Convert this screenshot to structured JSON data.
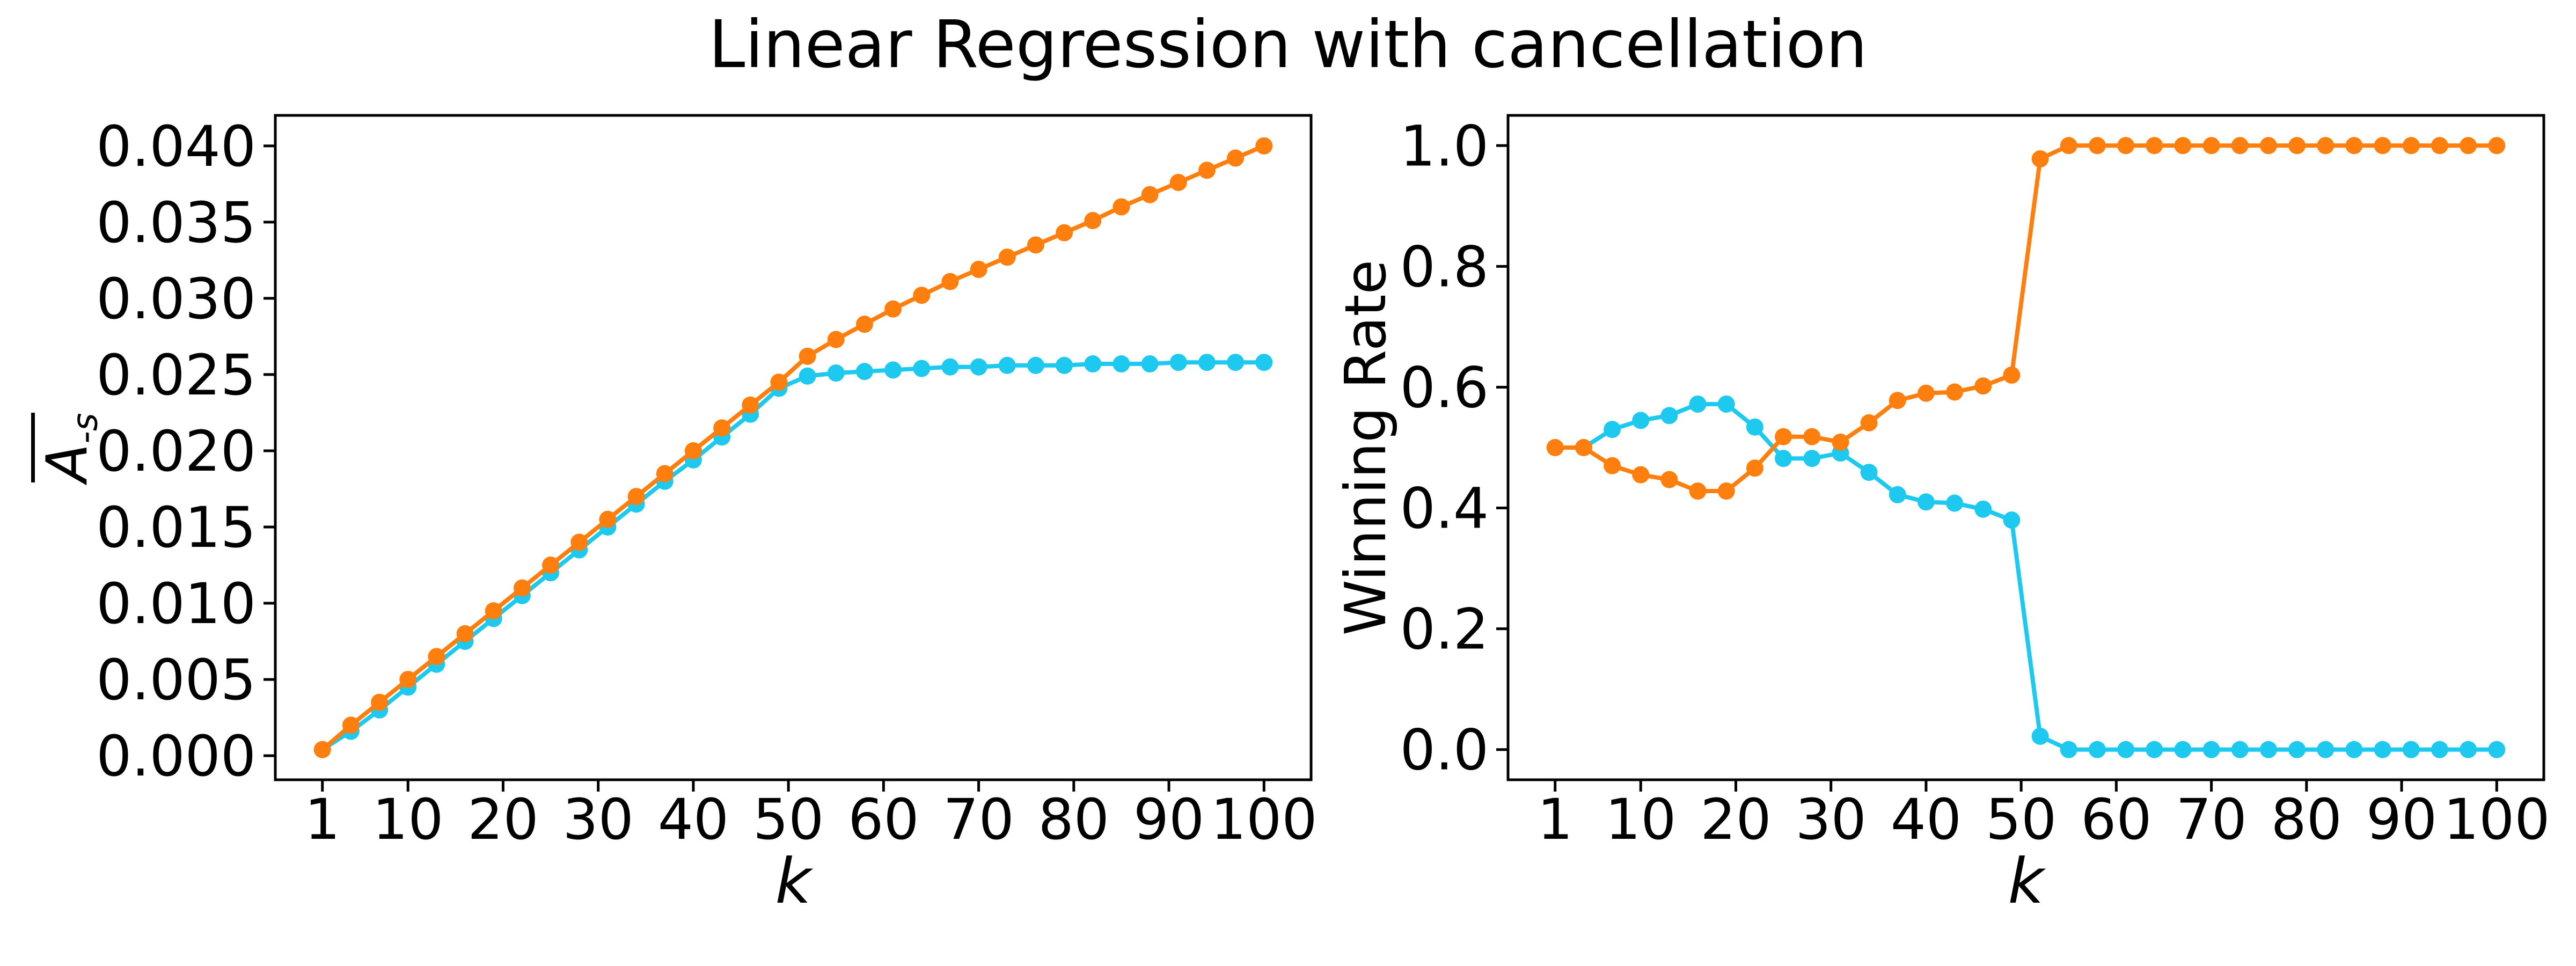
{
  "title": "Linear Regression with cancellation",
  "colors": {
    "orange": "#ff7f0e",
    "cyan": "#1ec9f0",
    "axis": "#000000",
    "background": "#ffffff"
  },
  "chart_data": [
    {
      "id": "left-panel",
      "type": "line",
      "marker": "circle",
      "xlabel": "k",
      "ylabel_base": "A",
      "ylabel_sub": "-s",
      "ylabel_text": "A-bar_{-s}",
      "grid": false,
      "legend": null,
      "xlim": [
        -3.95,
        104.95
      ],
      "ylim": [
        -0.00158,
        0.042
      ],
      "x": [
        1,
        4,
        7,
        10,
        13,
        16,
        19,
        22,
        25,
        28,
        31,
        34,
        37,
        40,
        43,
        46,
        49,
        52,
        55,
        58,
        61,
        64,
        67,
        70,
        73,
        76,
        79,
        82,
        85,
        88,
        91,
        94,
        97,
        100
      ],
      "x_ticks": [
        1,
        10,
        20,
        30,
        40,
        50,
        60,
        70,
        80,
        90,
        100
      ],
      "x_tick_labels": [
        "1",
        "10",
        "20",
        "30",
        "40",
        "50",
        "60",
        "70",
        "80",
        "90",
        "100"
      ],
      "y_ticks": [
        0.0,
        0.005,
        0.01,
        0.015,
        0.02,
        0.025,
        0.03,
        0.035,
        0.04
      ],
      "y_tick_labels": [
        "0.000",
        "0.005",
        "0.010",
        "0.015",
        "0.020",
        "0.025",
        "0.030",
        "0.035",
        "0.040"
      ],
      "series": [
        {
          "name": "cyan",
          "color_key": "cyan",
          "values": [
            0.0004,
            0.0016,
            0.003,
            0.0045,
            0.006,
            0.0075,
            0.009,
            0.0105,
            0.012,
            0.0135,
            0.015,
            0.0165,
            0.018,
            0.0194,
            0.0209,
            0.0224,
            0.0241,
            0.0249,
            0.0251,
            0.0252,
            0.0253,
            0.0254,
            0.0255,
            0.0255,
            0.0256,
            0.0256,
            0.0256,
            0.0257,
            0.0257,
            0.0257,
            0.0258,
            0.0258,
            0.0258,
            0.0258
          ]
        },
        {
          "name": "orange",
          "color_key": "orange",
          "values": [
            0.0004,
            0.002,
            0.0035,
            0.005,
            0.0065,
            0.008,
            0.0095,
            0.011,
            0.0125,
            0.014,
            0.0155,
            0.017,
            0.0185,
            0.02,
            0.0215,
            0.023,
            0.0245,
            0.0262,
            0.0273,
            0.0283,
            0.0293,
            0.0302,
            0.0311,
            0.0319,
            0.0327,
            0.0335,
            0.0343,
            0.0351,
            0.036,
            0.0368,
            0.0376,
            0.0384,
            0.0392,
            0.04
          ]
        }
      ]
    },
    {
      "id": "right-panel",
      "type": "line",
      "marker": "circle",
      "xlabel": "k",
      "ylabel": "Winning Rate",
      "grid": false,
      "legend": null,
      "xlim": [
        -3.95,
        104.95
      ],
      "ylim": [
        -0.05,
        1.05
      ],
      "x": [
        1,
        4,
        7,
        10,
        13,
        16,
        19,
        22,
        25,
        28,
        31,
        34,
        37,
        40,
        43,
        46,
        49,
        52,
        55,
        58,
        61,
        64,
        67,
        70,
        73,
        76,
        79,
        82,
        85,
        88,
        91,
        94,
        97,
        100
      ],
      "x_ticks": [
        1,
        10,
        20,
        30,
        40,
        50,
        60,
        70,
        80,
        90,
        100
      ],
      "x_tick_labels": [
        "1",
        "10",
        "20",
        "30",
        "40",
        "50",
        "60",
        "70",
        "80",
        "90",
        "100"
      ],
      "y_ticks": [
        0.0,
        0.2,
        0.4,
        0.6,
        0.8,
        1.0
      ],
      "y_tick_labels": [
        "0.0",
        "0.2",
        "0.4",
        "0.6",
        "0.8",
        "1.0"
      ],
      "series": [
        {
          "name": "cyan",
          "color_key": "cyan",
          "values": [
            0.5,
            0.5,
            0.53,
            0.545,
            0.553,
            0.572,
            0.572,
            0.534,
            0.482,
            0.482,
            0.491,
            0.459,
            0.422,
            0.41,
            0.408,
            0.398,
            0.38,
            0.022,
            0.0,
            0.0,
            0.0,
            0.0,
            0.0,
            0.0,
            0.0,
            0.0,
            0.0,
            0.0,
            0.0,
            0.0,
            0.0,
            0.0,
            0.0,
            0.0
          ]
        },
        {
          "name": "orange",
          "color_key": "orange",
          "values": [
            0.5,
            0.5,
            0.47,
            0.455,
            0.447,
            0.428,
            0.428,
            0.466,
            0.518,
            0.518,
            0.509,
            0.541,
            0.578,
            0.59,
            0.592,
            0.602,
            0.62,
            0.978,
            1.0,
            1.0,
            1.0,
            1.0,
            1.0,
            1.0,
            1.0,
            1.0,
            1.0,
            1.0,
            1.0,
            1.0,
            1.0,
            1.0,
            1.0,
            1.0
          ]
        }
      ]
    }
  ]
}
